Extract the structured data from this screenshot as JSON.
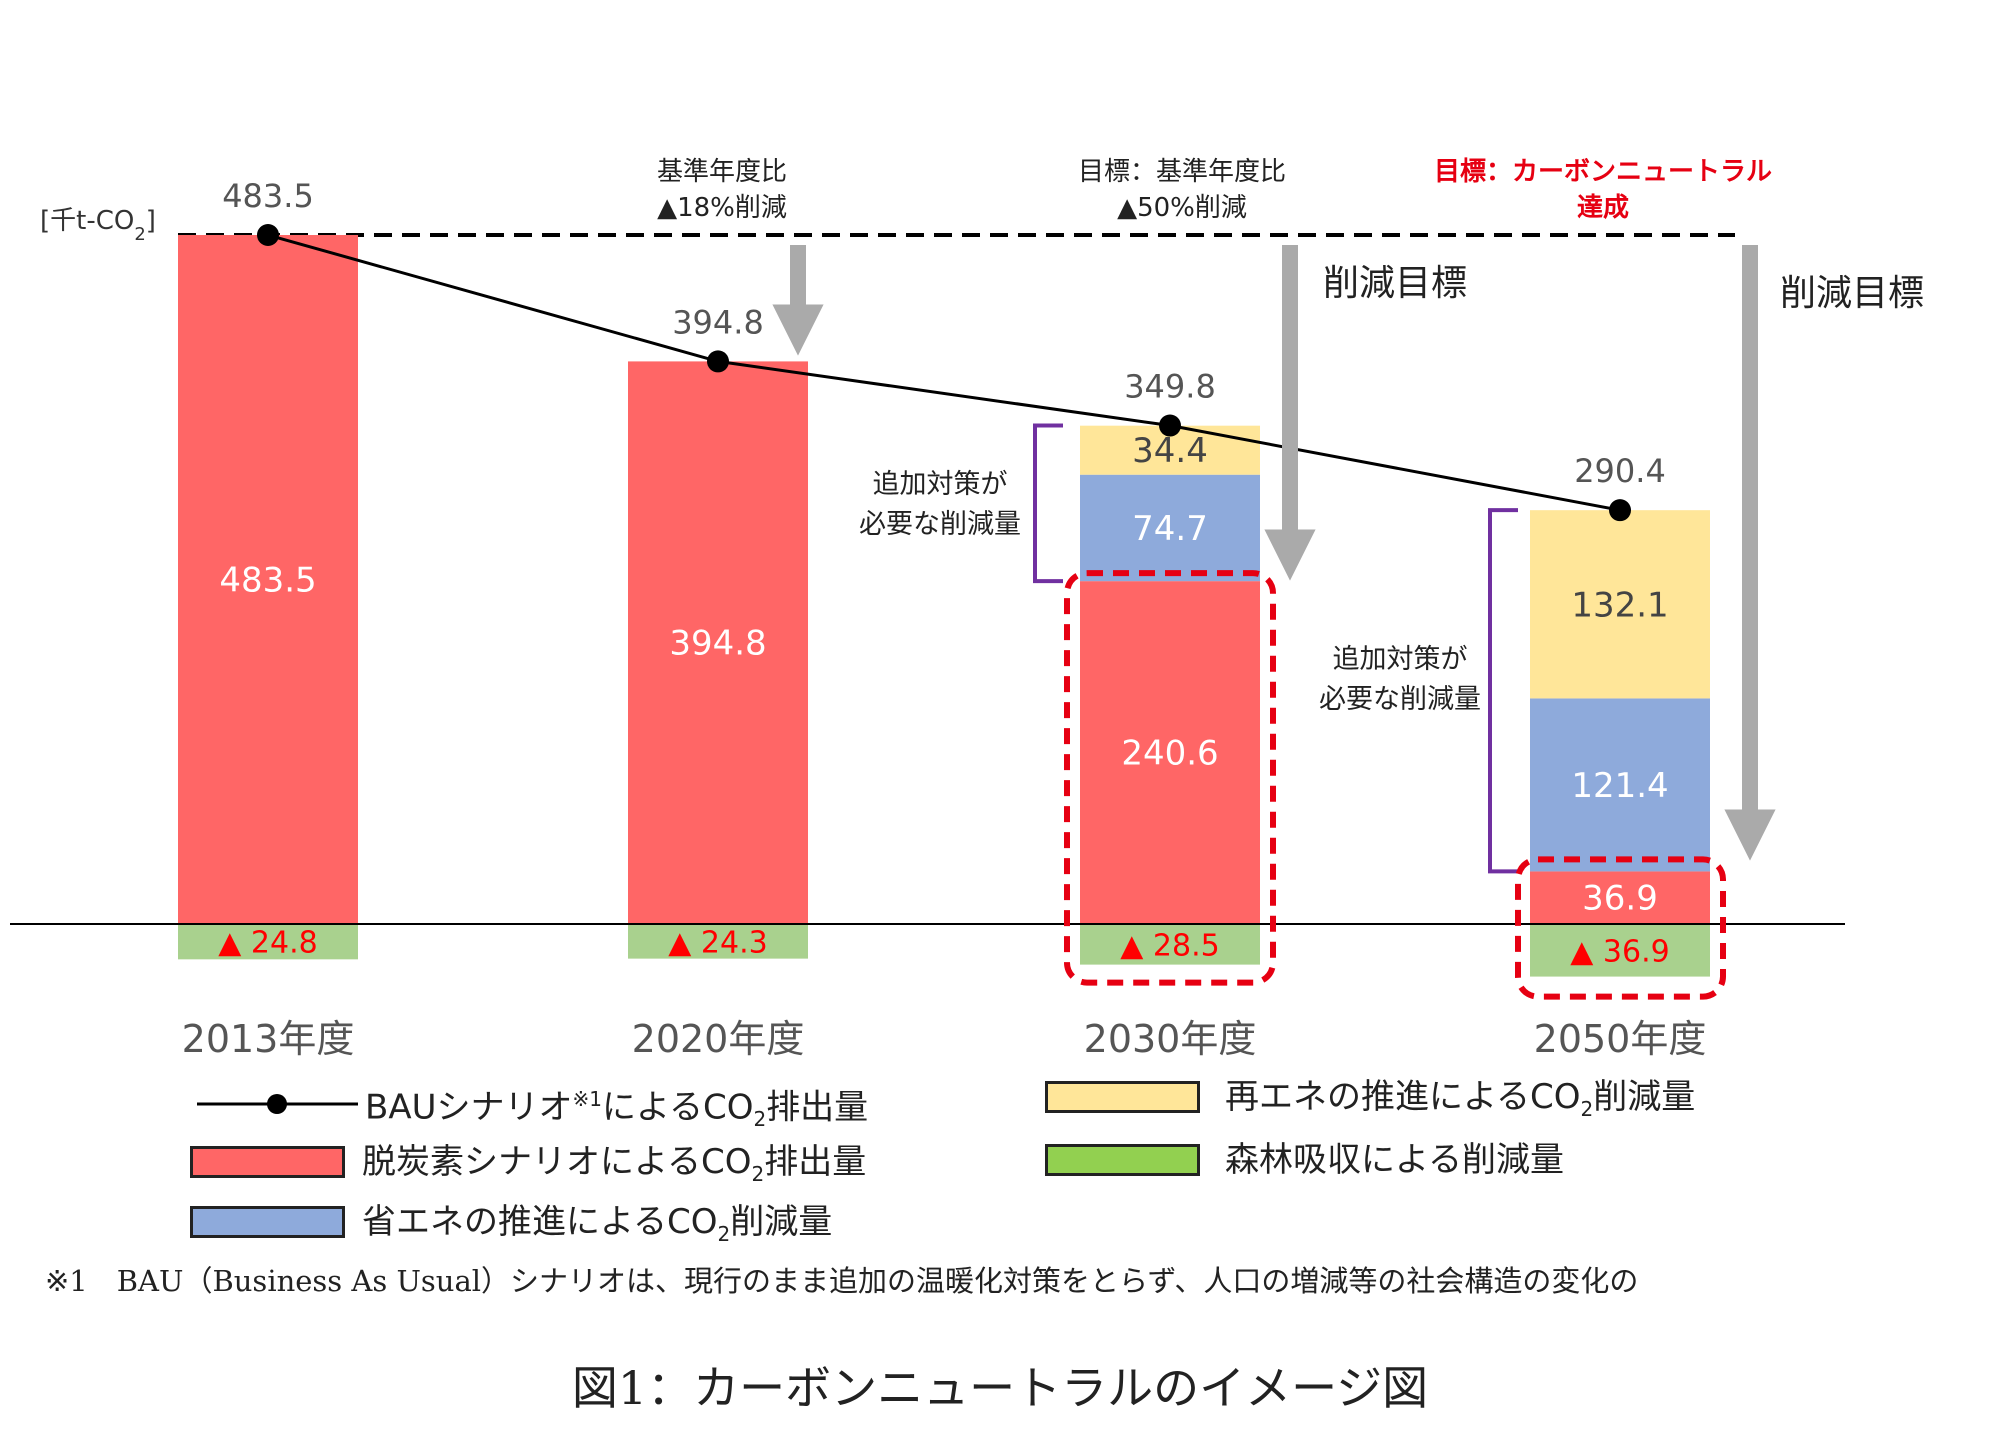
{
  "chart_data": {
    "type": "bar",
    "unit_label": "[千t-CO",
    "unit_label_sub": "2",
    "unit_label_end": "]",
    "categories": [
      "2013年度",
      "2020年度",
      "2030年度",
      "2050年度"
    ],
    "bau_line": {
      "values": [
        483.5,
        394.8,
        349.8,
        290.4
      ],
      "labels": [
        "483.5",
        "394.8",
        "349.8",
        "290.4"
      ]
    },
    "stacks": [
      {
        "segments": [
          {
            "series": "decarb",
            "value": 483.5,
            "label": "483.5"
          }
        ],
        "forest": {
          "value": 24.8,
          "label": "▲ 24.8"
        }
      },
      {
        "segments": [
          {
            "series": "decarb",
            "value": 394.8,
            "label": "394.8"
          }
        ],
        "forest": {
          "value": 24.3,
          "label": "▲ 24.3"
        }
      },
      {
        "segments": [
          {
            "series": "decarb",
            "value": 240.6,
            "label": "240.6"
          },
          {
            "series": "energy_saving",
            "value": 74.7,
            "label": "74.7"
          },
          {
            "series": "renewable",
            "value": 34.4,
            "label": "34.4"
          }
        ],
        "forest": {
          "value": 28.5,
          "label": "▲ 28.5"
        }
      },
      {
        "segments": [
          {
            "series": "decarb",
            "value": 36.9,
            "label": "36.9"
          },
          {
            "series": "energy_saving",
            "value": 121.4,
            "label": "121.4"
          },
          {
            "series": "renewable",
            "value": 132.1,
            "label": "132.1"
          }
        ],
        "forest": {
          "value": 36.9,
          "label": "▲ 36.9"
        }
      }
    ],
    "annotations": {
      "target_2020": [
        "基準年度比",
        "▲18%削減"
      ],
      "target_2030": [
        "目標：基準年度比",
        "▲50%削減"
      ],
      "target_2050": [
        "目標：カーボンニュートラル",
        "達成"
      ],
      "reduction_target": "削減目標",
      "additional_measures": [
        "追加対策が",
        "必要な削減量"
      ]
    },
    "colors": {
      "decarb": "#ff6666",
      "energy_saving": "#8eaadb",
      "renewable": "#ffe699",
      "forest": "#a9d18e",
      "bau_line": "#000000",
      "arrow": "#aaaaaa",
      "bracket": "#7030a0",
      "highlight": "#e60012",
      "forest_text": "#ff0000"
    }
  },
  "legend": {
    "bau": {
      "pre": "BAUシナリオ",
      "sup": "※1",
      "post": "によるCO",
      "sub": "2",
      "end": "排出量"
    },
    "decarb": {
      "pre": "脱炭素シナリオによるCO",
      "sub": "2",
      "end": "排出量"
    },
    "energy_saving": {
      "pre": "省エネの推進によるCO",
      "sub": "2",
      "end": "削減量"
    },
    "renewable": {
      "pre": "再エネの推進によるCO",
      "sub": "2",
      "end": "削減量"
    },
    "forest": {
      "pre": "森林吸収による削減量"
    }
  },
  "footnote": "※1　BAU（Business As Usual）シナリオは、現行のまま追加の温暖化対策をとらず、人口の増減等の社会構造の変化の",
  "caption": "図1：カーボンニュートラルのイメージ図"
}
